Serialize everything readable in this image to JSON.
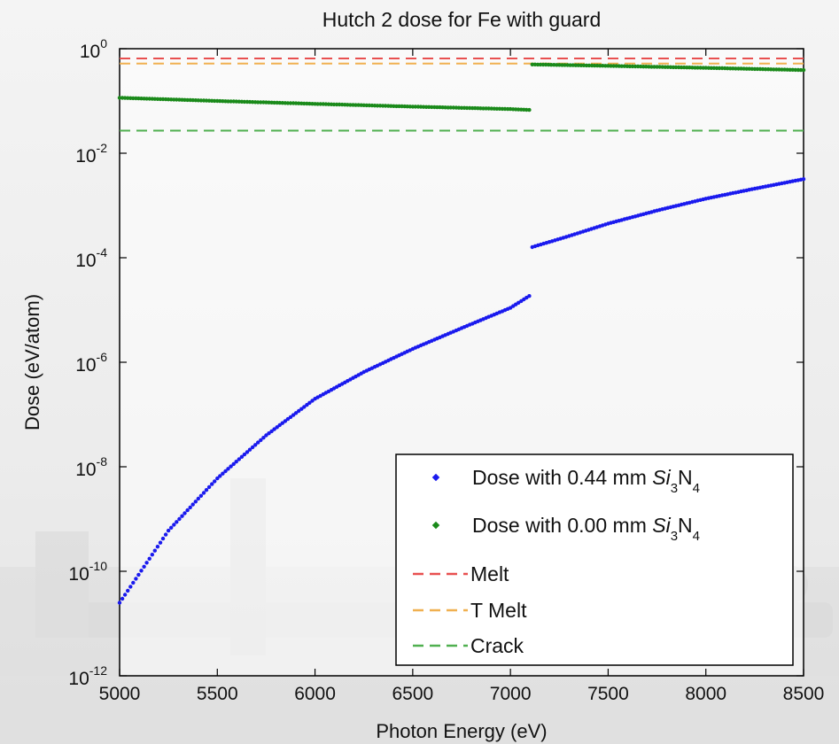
{
  "chart_data": {
    "type": "scatter",
    "title": "Hutch 2 dose for Fe with guard",
    "xlabel": "Photon Energy (eV)",
    "ylabel": "Dose (eV/atom)",
    "xlim": [
      5000,
      8500
    ],
    "ylim": [
      1e-12,
      1
    ],
    "yscale": "log",
    "xticks": [
      "5000",
      "5500",
      "6000",
      "6500",
      "7000",
      "7500",
      "8000",
      "8500"
    ],
    "yticks": [
      {
        "base": "10",
        "exp": "-12"
      },
      {
        "base": "10",
        "exp": "-10"
      },
      {
        "base": "10",
        "exp": "-8"
      },
      {
        "base": "10",
        "exp": "-6"
      },
      {
        "base": "10",
        "exp": "-4"
      },
      {
        "base": "10",
        "exp": "-2"
      },
      {
        "base": "10",
        "exp": "0"
      }
    ],
    "grid": false,
    "legend_position": "bottom-right",
    "series": [
      {
        "name": "Dose with 0.44 mm Si3N4",
        "legend": {
          "prefix": "Dose with 0.44 mm ",
          "italic": "Si",
          "sub1": "3",
          "mid": "N",
          "sub2": "4"
        },
        "style": "points",
        "color": "#1a1aee",
        "points": [
          [
            5000,
            2.5e-11
          ],
          [
            5250,
            6e-10
          ],
          [
            5500,
            6e-09
          ],
          [
            5750,
            4e-08
          ],
          [
            6000,
            2e-07
          ],
          [
            6250,
            6.5e-07
          ],
          [
            6500,
            1.8e-06
          ],
          [
            6750,
            4.5e-06
          ],
          [
            7000,
            1.1e-05
          ],
          [
            7110,
            2e-05
          ],
          [
            7112,
            0.00016
          ],
          [
            7300,
            0.00026
          ],
          [
            7500,
            0.00045
          ],
          [
            7750,
            0.0008
          ],
          [
            8000,
            0.00135
          ],
          [
            8250,
            0.0021
          ],
          [
            8500,
            0.0032
          ]
        ]
      },
      {
        "name": "Dose with 0.00 mm Si3N4",
        "legend": {
          "prefix": "Dose with 0.00 mm ",
          "italic": "Si",
          "sub1": "3",
          "mid": "N",
          "sub2": "4"
        },
        "style": "points",
        "color": "#1a8a1a",
        "points": [
          [
            5000,
            0.115
          ],
          [
            5500,
            0.1
          ],
          [
            6000,
            0.088
          ],
          [
            6500,
            0.078
          ],
          [
            7000,
            0.07
          ],
          [
            7110,
            0.067
          ],
          [
            7112,
            0.5
          ],
          [
            7500,
            0.47
          ],
          [
            8000,
            0.43
          ],
          [
            8500,
            0.39
          ]
        ]
      },
      {
        "name": "Melt",
        "style": "dashed-line",
        "color": "#e85050",
        "value": 0.65
      },
      {
        "name": "T Melt",
        "style": "dashed-line",
        "color": "#f0b050",
        "value": 0.52
      },
      {
        "name": "Crack",
        "style": "dashed-line",
        "color": "#50b050",
        "value": 0.027
      }
    ]
  }
}
